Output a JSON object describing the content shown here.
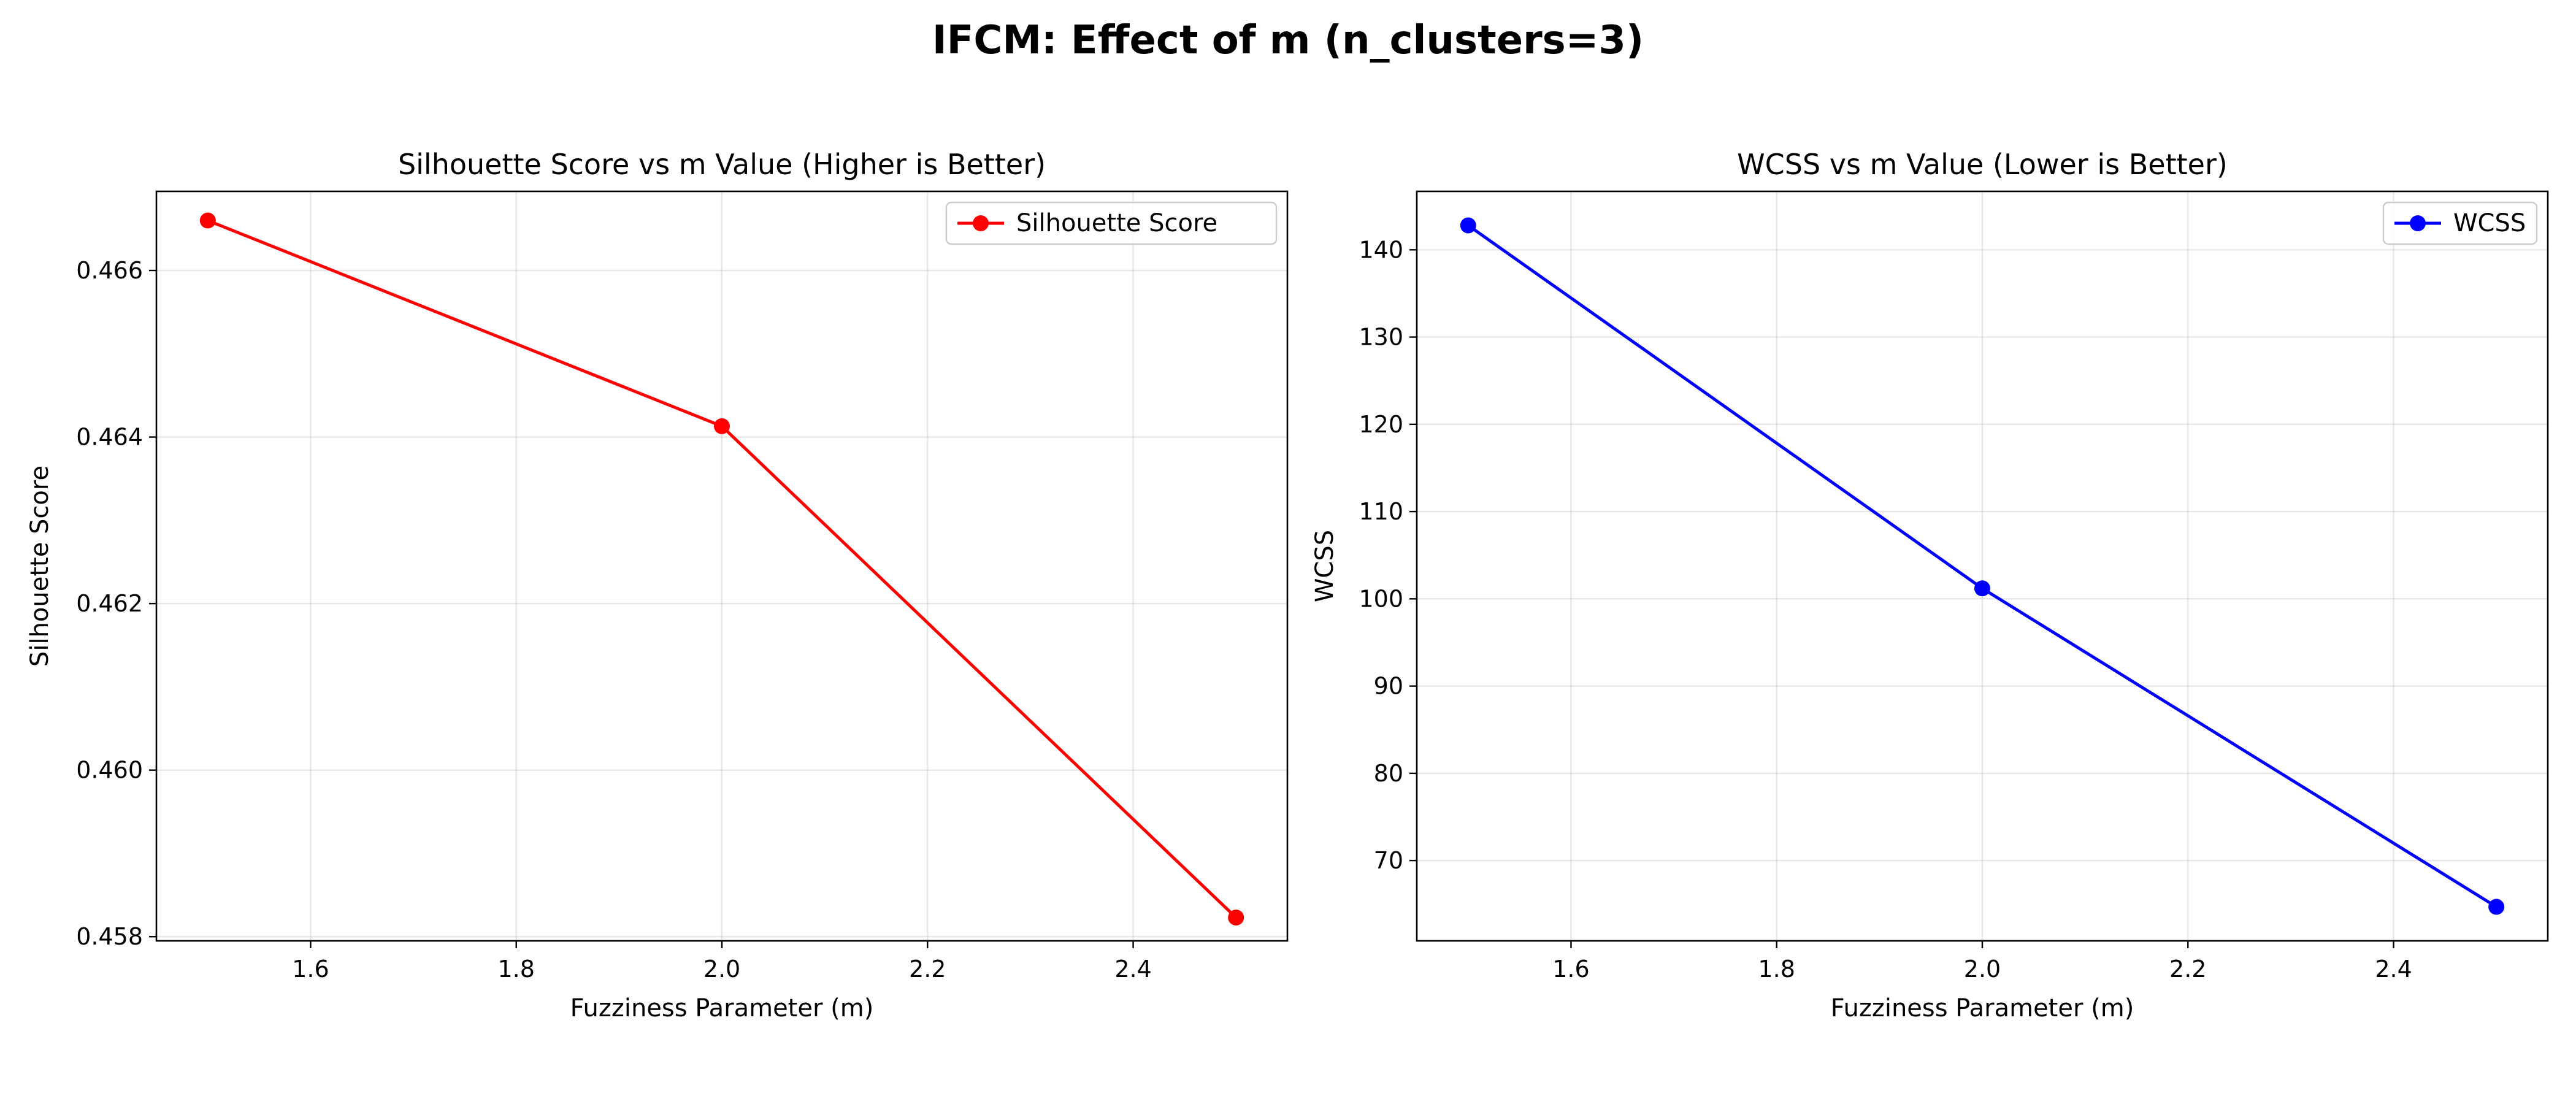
{
  "figure": {
    "title": "IFCM: Effect of m (n_clusters=3)"
  },
  "chart_data": [
    {
      "type": "line",
      "title": "Silhouette Score vs m Value (Higher is Better)",
      "xlabel": "Fuzziness Parameter (m)",
      "ylabel": "Silhouette Score",
      "x": [
        1.5,
        2.0,
        2.5
      ],
      "series": [
        {
          "name": "Silhouette Score",
          "color": "#ff0000",
          "marker": "circle",
          "values": [
            0.4666,
            0.46413,
            0.45823
          ]
        }
      ],
      "xlim": [
        1.45,
        2.55
      ],
      "ylim": [
        0.45795,
        0.46695
      ],
      "xticks": [
        1.6,
        1.8,
        2.0,
        2.2,
        2.4
      ],
      "xtick_labels": [
        "1.6",
        "1.8",
        "2.0",
        "2.2",
        "2.4"
      ],
      "yticks": [
        0.458,
        0.46,
        0.462,
        0.464,
        0.466
      ],
      "ytick_labels": [
        "0.458",
        "0.460",
        "0.462",
        "0.464",
        "0.466"
      ],
      "grid": true,
      "legend_position": "upper right"
    },
    {
      "type": "line",
      "title": "WCSS vs m Value (Lower is Better)",
      "xlabel": "Fuzziness Parameter (m)",
      "ylabel": "WCSS",
      "x": [
        1.5,
        2.0,
        2.5
      ],
      "series": [
        {
          "name": "WCSS",
          "color": "#0000ff",
          "marker": "circle",
          "values": [
            142.8,
            101.2,
            64.7
          ]
        }
      ],
      "xlim": [
        1.45,
        2.55
      ],
      "ylim": [
        60.8,
        146.7
      ],
      "xticks": [
        1.6,
        1.8,
        2.0,
        2.2,
        2.4
      ],
      "xtick_labels": [
        "1.6",
        "1.8",
        "2.0",
        "2.2",
        "2.4"
      ],
      "yticks": [
        70,
        80,
        90,
        100,
        110,
        120,
        130,
        140
      ],
      "ytick_labels": [
        "70",
        "80",
        "90",
        "100",
        "110",
        "120",
        "130",
        "140"
      ],
      "grid": true,
      "legend_position": "upper right"
    }
  ]
}
